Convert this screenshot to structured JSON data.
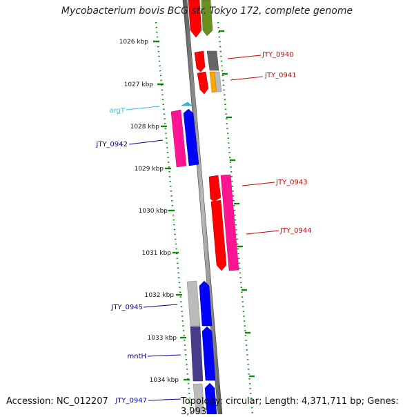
{
  "title": "Mycobacterium bovis BCG str. Tokyo 172, complete genome",
  "accession": "Accession: NC_012207",
  "summary": "Topology: circular; Length: 4,371,711 bp; Genes: 3,993",
  "colors": {
    "red": "#ff0000",
    "pink": "#ff1493",
    "blue": "#0000ff",
    "olive": "#6b8e23",
    "grey": "#666666",
    "light_grey": "#bbbbbb",
    "orange": "#ffa500",
    "purple": "#483d8b",
    "cyan": "#33bbdd",
    "tick_green": "#0a8a0a",
    "label_red": "#cc0000",
    "label_blue": "#00008b",
    "label_cyan": "#33bbdd"
  },
  "kbp_ticks": [
    "1026 kbp",
    "1027 kbp",
    "1028 kbp",
    "1029 kbp",
    "1030 kbp",
    "1031 kbp",
    "1032 kbp",
    "1033 kbp",
    "1034 kbp"
  ],
  "gene_labels": {
    "JTY_0940": "JTY_0940",
    "JTY_0941": "JTY_0941",
    "argT": "argT",
    "JTY_0942": "JTY_0942",
    "JTY_0943": "JTY_0943",
    "JTY_0944": "JTY_0944",
    "JTY_0945": "JTY_0945",
    "mntH": "mntH",
    "JTY_0947": "JTY_0947"
  }
}
